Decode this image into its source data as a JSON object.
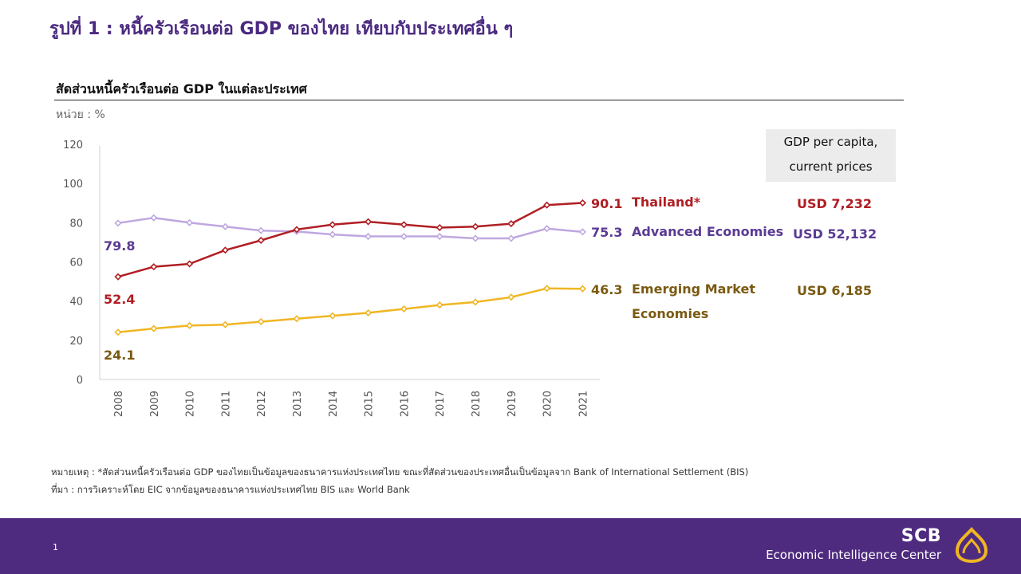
{
  "slide": {
    "title": "รูปที่ 1 : หนี้ครัวเรือนต่อ GDP ของไทย เทียบกับประเทศอื่น ๆ",
    "chart_subtitle": "สัดส่วนหนี้ครัวเรือนต่อ GDP ในแต่ละประเทศ",
    "unit_label": "หน่วย : %",
    "gdp_header": {
      "line1": "GDP per capita,",
      "line2": "current prices"
    },
    "gdp_values": {
      "thailand": "USD 7,232",
      "advanced": "USD 52,132",
      "emerging": "USD 6,185"
    },
    "footnotes": {
      "note": "หมายเหตุ : *สัดส่วนหนี้ครัวเรือนต่อ GDP ของไทยเป็นข้อมูลของธนาคารแห่งประเทศไทย ขณะที่สัดส่วนของประเทศอื่นเป็นข้อมูลจาก Bank of International Settlement (BIS)",
      "source": "ที่มา : การวิเคราะห์โดย EIC จากข้อมูลของธนาคารแห่งประเทศไทย BIS และ World Bank"
    },
    "footer": {
      "page_number": "1",
      "brand": "SCB",
      "brand_sub": "Economic Intelligence Center"
    }
  },
  "colors": {
    "title": "#4b2a80",
    "thailand": "#b01e23",
    "advanced": "#bfa7e0",
    "advanced_label": "#5b3a93",
    "emerging": "#f0b622",
    "emerging_label": "#7a5a12",
    "footer": "#4f2b7f",
    "logo": "#f0b622"
  },
  "chart_data": {
    "type": "line",
    "x": [
      "2008",
      "2009",
      "2010",
      "2011",
      "2012",
      "2013",
      "2014",
      "2015",
      "2016",
      "2017",
      "2018",
      "2019",
      "2020",
      "2021"
    ],
    "ylim": [
      0,
      120
    ],
    "yticks": [
      "0",
      "20",
      "40",
      "60",
      "80",
      "100",
      "120"
    ],
    "grid": false,
    "series": [
      {
        "key": "thailand",
        "name": "Thailand*",
        "values": [
          52.4,
          57.5,
          59.0,
          66.0,
          71.0,
          76.5,
          79.0,
          80.5,
          79.0,
          77.5,
          78.0,
          79.5,
          89.0,
          90.1
        ],
        "start_label": "52.4",
        "end_label": "90.1"
      },
      {
        "key": "advanced",
        "name": "Advanced Economies",
        "values": [
          79.8,
          82.5,
          80.0,
          78.0,
          76.0,
          75.5,
          74.0,
          73.0,
          73.0,
          73.0,
          72.0,
          72.0,
          77.0,
          75.3
        ],
        "start_label": "79.8",
        "end_label": "75.3"
      },
      {
        "key": "emerging",
        "name_line1": "Emerging Market",
        "name_line2": "Economies",
        "values": [
          24.1,
          26.0,
          27.5,
          28.0,
          29.5,
          31.0,
          32.5,
          34.0,
          36.0,
          38.0,
          39.5,
          42.0,
          46.5,
          46.3
        ],
        "start_label": "24.1",
        "end_label": "46.3"
      }
    ]
  }
}
